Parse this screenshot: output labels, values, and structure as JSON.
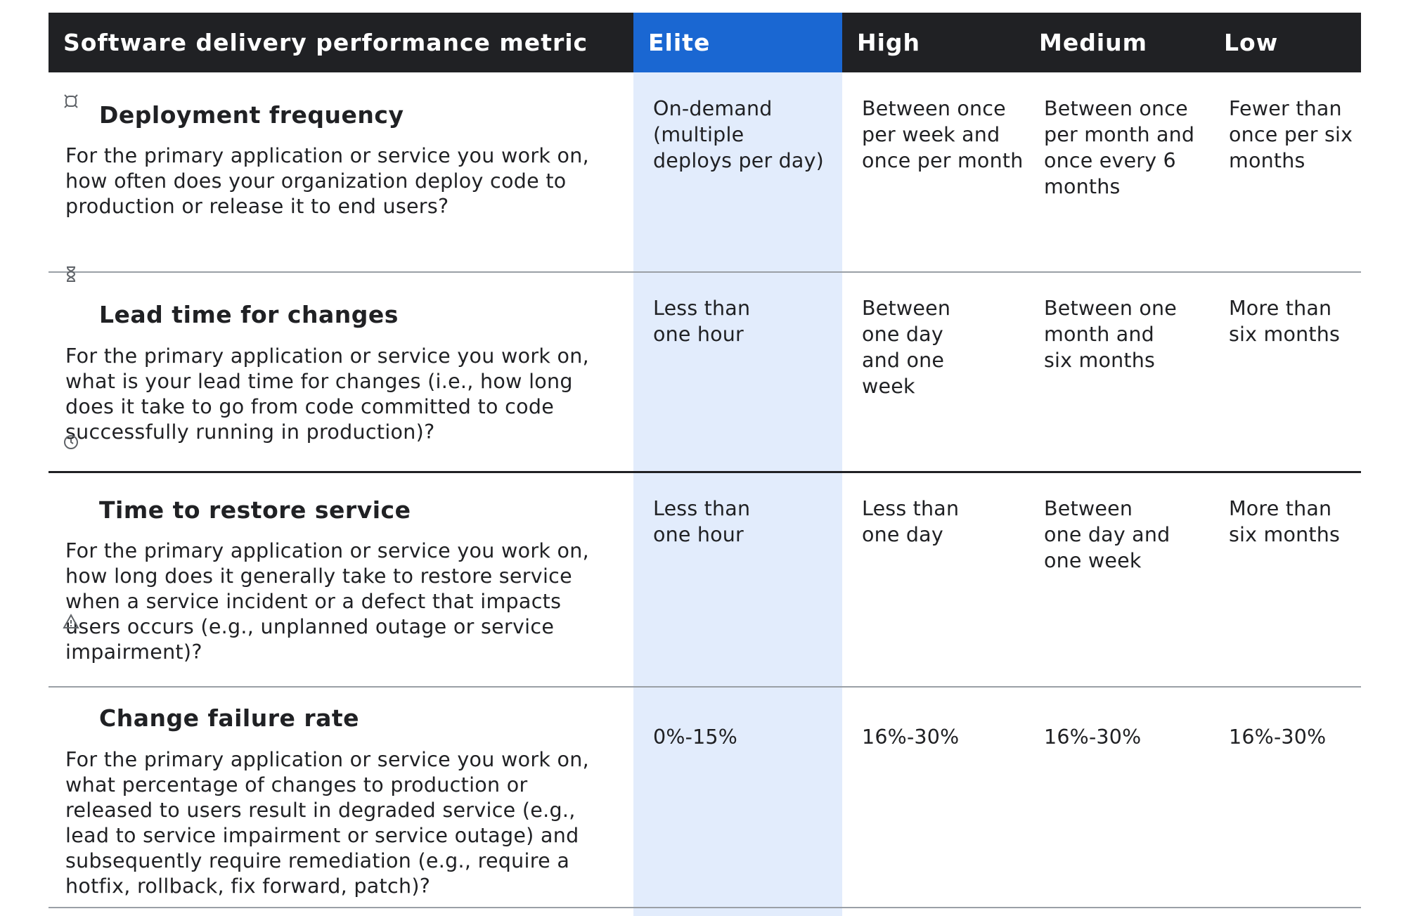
{
  "header": {
    "metric": "Software delivery performance metric",
    "elite": "Elite",
    "high": "High",
    "medium": "Medium",
    "low": "Low"
  },
  "rows": [
    {
      "icon": "rocket-icon",
      "title": "Deployment frequency",
      "description": "For the primary application or service you work on, how often does your organization deploy code to production or release it to end users?",
      "elite": "On-demand (multiple deploys per day)",
      "high": "Between once per week and once per month",
      "medium": "Between once per month and once every 6 months",
      "low": "Fewer than once per six months"
    },
    {
      "icon": "hourglass-icon",
      "title": "Lead time for changes",
      "description": "For the primary application or service you work on, what is your lead time for changes (i.e., how long does it take to go from code committed to code successfully running in production)?",
      "elite": "Less than one hour",
      "high": "Between one day and one week",
      "medium": "Between one month and six months",
      "low": "More than six months"
    },
    {
      "icon": "clock-icon",
      "title": "Time to restore service",
      "description": "For the primary application or service you work on, how long does it generally take to restore service when a service incident or a defect that impacts users occurs (e.g., unplanned outage or service impairment)?",
      "elite": "Less than one hour",
      "high": "Less than one day",
      "medium": "Between one day and one week",
      "low": "More than six months"
    },
    {
      "icon": "warning-icon",
      "title": "Change failure rate",
      "description": "For the primary application or service you work on, what percentage of changes to production or released to users result in degraded service (e.g., lead to service impairment or service outage) and subsequently require remediation (e.g., require a hotfix, rollback, fix forward, patch)?",
      "elite": "0%-15%",
      "high": "16%-30%",
      "medium": "16%-30%",
      "low": "16%-30%"
    }
  ]
}
